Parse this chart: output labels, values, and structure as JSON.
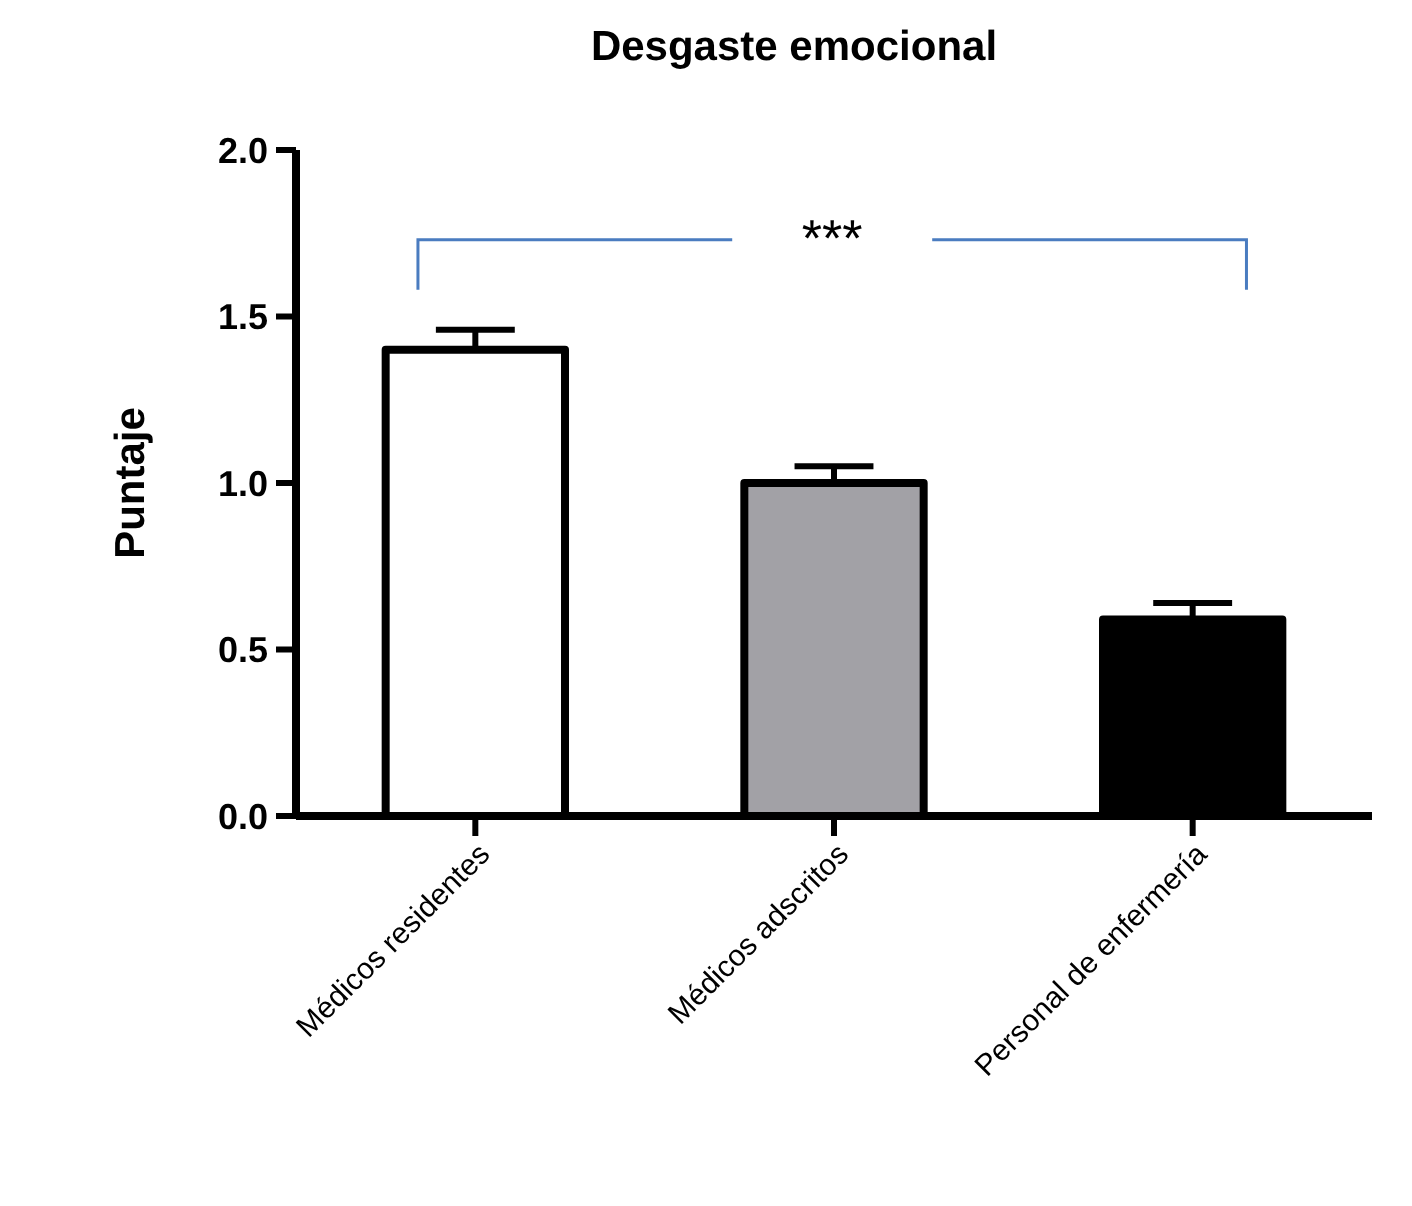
{
  "chart_data": {
    "type": "bar",
    "title": "Desgaste emocional",
    "ylabel": "Puntaje",
    "categories": [
      "Médicos residentes",
      "Médicos adscritos",
      "Personal de enfermería"
    ],
    "values": [
      1.4,
      1.0,
      0.59
    ],
    "colors": [
      "#ffffff",
      "#a2a1a6",
      "#000000"
    ],
    "errors": [
      [
        1.4,
        1.46
      ],
      [
        1.0,
        1.05
      ],
      [
        0.59,
        0.64
      ]
    ],
    "ylim": [
      0,
      2.0
    ],
    "yticks": [
      {
        "value": 0,
        "label": "0.0"
      },
      {
        "value": 0.5,
        "label": "0.5"
      },
      {
        "value": 1.0,
        "label": "1.0"
      },
      {
        "value": 1.5,
        "label": "1.5"
      },
      {
        "value": 2.0,
        "label": "2.0"
      }
    ],
    "annotations": [
      "***"
    ]
  }
}
